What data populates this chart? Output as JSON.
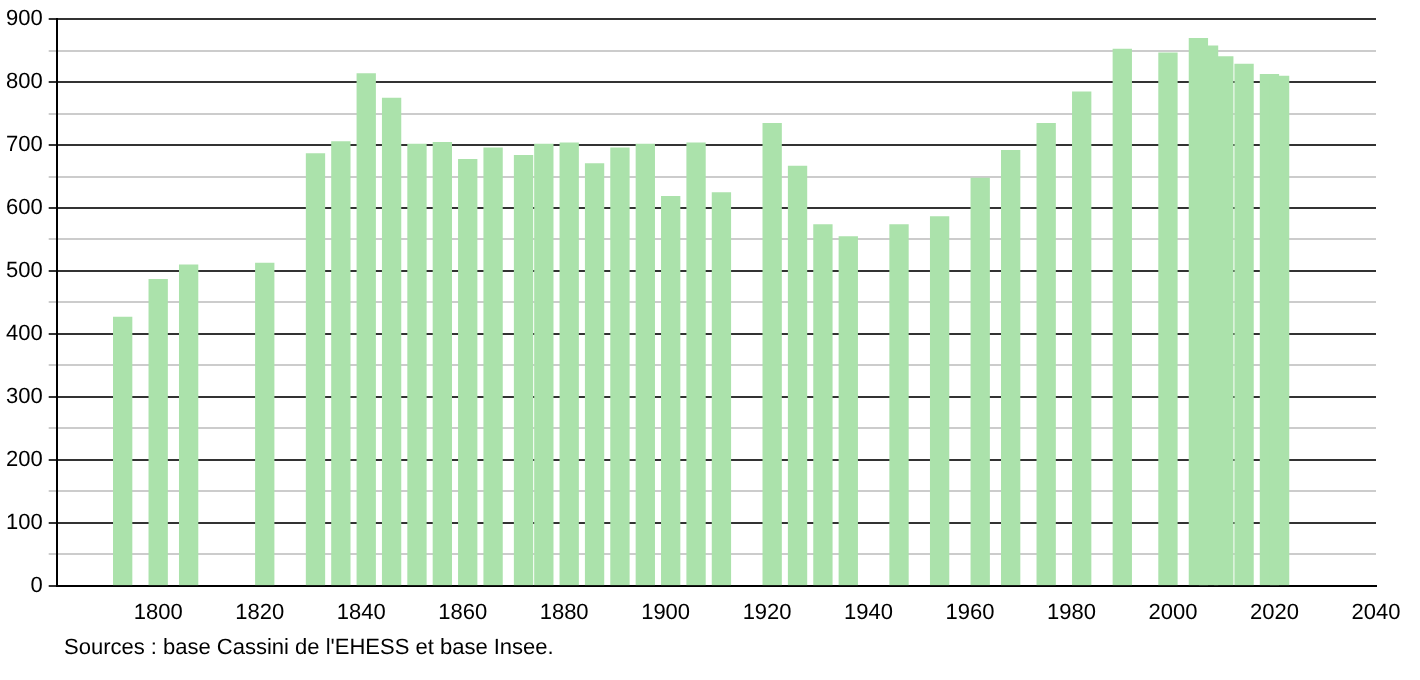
{
  "chart_data": {
    "type": "bar",
    "x": [
      1793,
      1800,
      1806,
      1821,
      1831,
      1836,
      1841,
      1846,
      1851,
      1856,
      1861,
      1866,
      1872,
      1876,
      1881,
      1886,
      1891,
      1896,
      1901,
      1906,
      1911,
      1921,
      1926,
      1931,
      1936,
      1946,
      1954,
      1962,
      1968,
      1975,
      1982,
      1990,
      1999,
      2005,
      2007,
      2010,
      2014,
      2019,
      2021
    ],
    "values": [
      426,
      486,
      509,
      512,
      686,
      705,
      813,
      774,
      701,
      704,
      677,
      695,
      683,
      701,
      703,
      670,
      695,
      701,
      618,
      703,
      624,
      734,
      666,
      573,
      554,
      573,
      586,
      647,
      691,
      734,
      784,
      852,
      846,
      869,
      857,
      840,
      828,
      812,
      809
    ],
    "color": "#abe2ab",
    "xlim": [
      1780,
      2040
    ],
    "xticks": [
      1800,
      1820,
      1840,
      1860,
      1880,
      1900,
      1920,
      1940,
      1960,
      1980,
      2000,
      2020,
      2040
    ],
    "ylim": [
      0,
      900
    ],
    "yticks": [
      0,
      {
        "value": 50,
        "label": null
      },
      100,
      {
        "value": 150,
        "label": null
      },
      200,
      {
        "value": 250,
        "label": null
      },
      300,
      {
        "value": 350,
        "label": null
      },
      400,
      {
        "value": 450,
        "label": null
      },
      500,
      {
        "value": 550,
        "label": null
      },
      600,
      {
        "value": 650,
        "label": null
      },
      700,
      {
        "value": 750,
        "label": null
      },
      800,
      {
        "value": 850,
        "label": null
      },
      900
    ],
    "grid": "y",
    "annotations": [
      "Sources : base Cassini de l'EHESS et base Insee."
    ]
  }
}
